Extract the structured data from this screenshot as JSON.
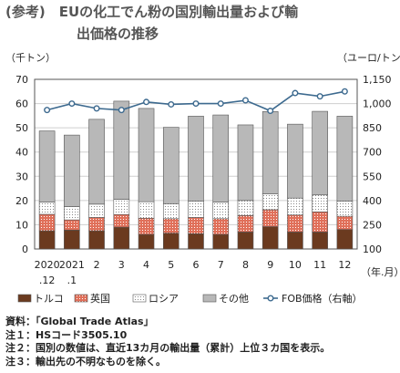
{
  "title": {
    "prefix": "(参考)",
    "line1": "EUの化工でん粉の国別輸出量および輸",
    "line2": "出価格の推移"
  },
  "notes": [
    "資料：「Global Trade Atlas」",
    "注１：HSコード3505.10",
    "注２：国別の数値は、直近13カ月の輸出量（累計）上位３カ国を表示。",
    "注３：輸出先の不明なものを除く。"
  ],
  "colors": {
    "turkey": "#6b3a1f",
    "uk": "#e0705a",
    "russia": "#ffffff",
    "other": "#b8b8b8",
    "fob": "#3d6a8f"
  },
  "chart_data": {
    "type": "bar",
    "stacked": true,
    "left_unit": "（千トン）",
    "right_unit": "（ユーロ/トン）",
    "x_unit": "（年.月）",
    "categories": [
      "2020\n.12",
      "2021\n.1",
      "2",
      "3",
      "4",
      "5",
      "6",
      "7",
      "8",
      "9",
      "10",
      "11",
      "12"
    ],
    "ylim": [
      0,
      70
    ],
    "y_ticks": [
      0,
      10,
      20,
      30,
      40,
      50,
      60,
      70
    ],
    "y2lim": [
      100,
      1150
    ],
    "y2_ticks": [
      100,
      250,
      400,
      550,
      700,
      850,
      "1,000",
      "1,150"
    ],
    "series": [
      {
        "name": "トルコ",
        "key": "turkey",
        "values": [
          7.5,
          7.8,
          7.5,
          9.0,
          6.0,
          6.5,
          6.3,
          6.0,
          7.0,
          9.2,
          7.0,
          7.0,
          8.0
        ]
      },
      {
        "name": "英国",
        "key": "uk",
        "values": [
          6.8,
          4.2,
          5.5,
          5.2,
          6.7,
          6.0,
          6.7,
          6.5,
          6.8,
          7.0,
          7.0,
          8.3,
          5.5
        ]
      },
      {
        "name": "ロシア",
        "key": "russia",
        "values": [
          5.0,
          5.5,
          5.5,
          6.3,
          6.8,
          6.2,
          6.8,
          6.8,
          6.2,
          6.5,
          7.0,
          7.0,
          6.3
        ]
      },
      {
        "name": "その他",
        "key": "other",
        "values": [
          29.4,
          29.5,
          35.0,
          40.5,
          38.5,
          31.5,
          35.0,
          36.0,
          31.2,
          34.0,
          30.5,
          34.5,
          35.0
        ]
      }
    ],
    "line": {
      "name": "FOB価格（右軸）",
      "values": [
        960,
        1000,
        970,
        960,
        1010,
        995,
        1000,
        1000,
        1020,
        955,
        1065,
        1045,
        1075
      ]
    }
  }
}
